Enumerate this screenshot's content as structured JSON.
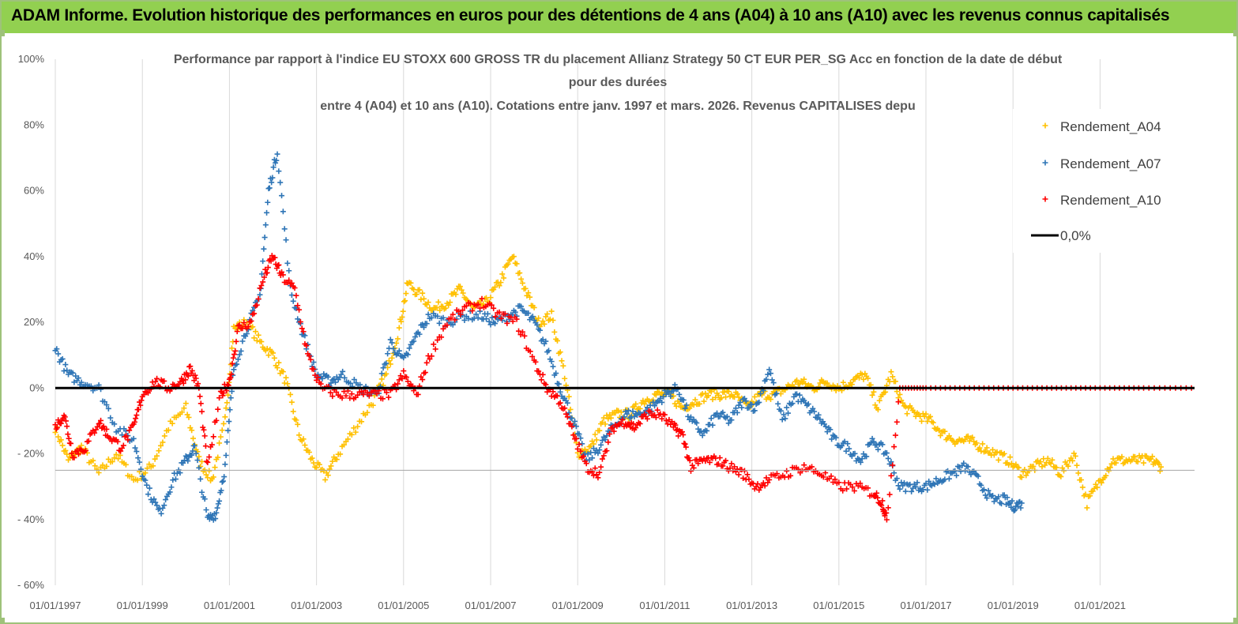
{
  "banner": {
    "title": "ADAM Informe. Evolution historique des performances en euros pour des détentions de 4 ans (A04) à 10 ans (A10) avec les revenus connus capitalisés",
    "color": "#92d050"
  },
  "chart_data": {
    "type": "scatter",
    "title_lines": [
      "Performance par rapport à l'indice EU STOXX 600 GROSS TR  du placement Allianz Strategy 50 CT EUR PER_SG Acc en fonction de la date de début",
      "pour des durées",
      "entre 4 (A04) et 10 ans (A10). Cotations entre janv. 1997 et mars. 2026. Revenus CAPITALISES depu"
    ],
    "ylim": [
      -60,
      100
    ],
    "y_ticks": [
      100,
      80,
      60,
      40,
      20,
      0,
      -20,
      -40,
      -60
    ],
    "y_tick_labels": [
      "100%",
      "80%",
      "60%",
      "40%",
      "20%",
      "0%",
      "- 20%",
      "- 40%",
      "- 60%"
    ],
    "xlim": [
      1997.0,
      2023.17
    ],
    "x_ticks": [
      1997,
      1999,
      2001,
      2003,
      2005,
      2007,
      2009,
      2011,
      2013,
      2015,
      2017,
      2019,
      2021
    ],
    "x_tick_labels": [
      "01/01/1997",
      "01/01/1999",
      "01/01/2001",
      "01/01/2003",
      "01/01/2005",
      "01/01/2007",
      "01/01/2009",
      "01/01/2011",
      "01/01/2013",
      "01/01/2015",
      "01/01/2017",
      "01/01/2019",
      "01/01/2021"
    ],
    "series": [
      {
        "name": "Rendement_A04",
        "color": "#ffc000",
        "x": [
          1997.0,
          1997.3,
          1997.6,
          1998.0,
          1998.4,
          1998.8,
          1999.2,
          1999.6,
          2000.0,
          2000.3,
          2000.6,
          2000.9,
          2001.1,
          2001.4,
          2001.7,
          2002.0,
          2002.3,
          2002.6,
          2002.9,
          2003.2,
          2003.5,
          2003.9,
          2004.3,
          2004.6,
          2004.9,
          2005.1,
          2005.4,
          2005.7,
          2006.0,
          2006.3,
          2006.6,
          2006.9,
          2007.2,
          2007.5,
          2007.8,
          2008.1,
          2008.4,
          2008.7,
          2009.0,
          2009.3,
          2009.6,
          2009.9,
          2010.2,
          2010.5,
          2010.8,
          2011.1,
          2011.4,
          2011.7,
          2012.0,
          2012.3,
          2012.6,
          2012.9,
          2013.2,
          2013.5,
          2013.8,
          2014.1,
          2014.4,
          2014.7,
          2015.0,
          2015.3,
          2015.6,
          2015.9,
          2016.2,
          2016.5,
          2016.8,
          2017.1,
          2017.4,
          2017.7,
          2018.0,
          2018.3,
          2018.6,
          2018.9,
          2019.2,
          2019.5,
          2019.8,
          2020.1,
          2020.4,
          2020.7,
          2021.0,
          2021.3,
          2021.6,
          2021.9,
          2022.2,
          2022.4
        ],
        "y": [
          -12,
          -22,
          -18,
          -26,
          -20,
          -28,
          -24,
          -12,
          -6,
          -22,
          -28,
          -10,
          18,
          20,
          14,
          10,
          2,
          -14,
          -22,
          -27,
          -20,
          -12,
          -4,
          4,
          18,
          32,
          28,
          24,
          26,
          30,
          24,
          26,
          32,
          40,
          30,
          20,
          22,
          4,
          -20,
          -18,
          -10,
          -8,
          -8,
          -4,
          -2,
          -2,
          -6,
          -4,
          -2,
          -2,
          -2,
          -6,
          -2,
          -2,
          0,
          2,
          0,
          2,
          0,
          2,
          4,
          -6,
          4,
          -6,
          -8,
          -10,
          -14,
          -16,
          -16,
          -18,
          -20,
          -22,
          -26,
          -24,
          -22,
          -26,
          -20,
          -35,
          -28,
          -22,
          -22,
          -22,
          -22,
          -24
        ]
      },
      {
        "name": "Rendement_A07",
        "color": "#2e75b6",
        "x": [
          1997.0,
          1997.3,
          1997.6,
          1998.0,
          1998.4,
          1998.8,
          1999.1,
          1999.4,
          1999.7,
          2000.0,
          2000.2,
          2000.5,
          2000.7,
          2000.9,
          2001.1,
          2001.4,
          2001.7,
          2001.9,
          2002.1,
          2002.4,
          2002.7,
          2003.0,
          2003.3,
          2003.6,
          2004.0,
          2004.4,
          2004.7,
          2005.0,
          2005.3,
          2005.6,
          2006.0,
          2006.4,
          2006.8,
          2007.1,
          2007.4,
          2007.7,
          2008.0,
          2008.3,
          2008.6,
          2008.9,
          2009.2,
          2009.5,
          2009.8,
          2010.1,
          2010.4,
          2010.7,
          2011.0,
          2011.3,
          2011.6,
          2011.9,
          2012.2,
          2012.5,
          2012.8,
          2013.1,
          2013.4,
          2013.7,
          2014.0,
          2014.3,
          2014.6,
          2014.9,
          2015.2,
          2015.5,
          2015.8,
          2016.1,
          2016.4,
          2016.7,
          2017.0,
          2017.3,
          2017.6,
          2017.9,
          2018.2,
          2018.5,
          2018.8,
          2019.0,
          2019.2
        ],
        "y": [
          12,
          4,
          2,
          0,
          -12,
          -16,
          -30,
          -38,
          -28,
          -22,
          -18,
          -40,
          -38,
          -24,
          6,
          18,
          28,
          60,
          72,
          30,
          16,
          4,
          2,
          4,
          0,
          -2,
          14,
          8,
          16,
          22,
          20,
          22,
          22,
          20,
          22,
          24,
          20,
          12,
          0,
          -10,
          -22,
          -18,
          -12,
          -8,
          -8,
          -6,
          -2,
          0,
          -10,
          -14,
          -8,
          -10,
          -4,
          -6,
          6,
          -10,
          -2,
          -6,
          -10,
          -16,
          -18,
          -22,
          -16,
          -20,
          -30,
          -30,
          -30,
          -28,
          -26,
          -24,
          -28,
          -34,
          -34,
          -36,
          -35
        ]
      },
      {
        "name": "Rendement_A10",
        "color": "#ff0000",
        "x": [
          1997.0,
          1997.2,
          1997.4,
          1997.7,
          1998.0,
          1998.2,
          1998.5,
          1998.8,
          1999.0,
          1999.3,
          1999.6,
          1999.9,
          2000.1,
          2000.3,
          2000.5,
          2000.8,
          2001.0,
          2001.2,
          2001.5,
          2001.8,
          2002.0,
          2002.2,
          2002.5,
          2002.8,
          2003.1,
          2003.5,
          2003.9,
          2004.3,
          2004.7,
          2005.0,
          2005.3,
          2005.6,
          2006.0,
          2006.4,
          2006.8,
          2007.2,
          2007.6,
          2008.0,
          2008.3,
          2008.6,
          2008.9,
          2009.2,
          2009.5,
          2009.8,
          2010.1,
          2010.3,
          2010.6,
          2010.9,
          2011.2,
          2011.4,
          2011.6,
          2011.9,
          2012.2,
          2012.5,
          2012.8,
          2013.1,
          2013.4,
          2013.8,
          2014.2,
          2014.6,
          2015.0,
          2015.4,
          2015.8,
          2016.0,
          2016.1,
          2016.4,
          2017.0,
          2018.0,
          2019.0,
          2020.0,
          2021.0,
          2022.0,
          2023.1
        ],
        "y": [
          -12,
          -8,
          -20,
          -18,
          -10,
          -14,
          -18,
          -12,
          -2,
          2,
          0,
          2,
          6,
          0,
          -24,
          -2,
          2,
          18,
          20,
          34,
          40,
          34,
          30,
          10,
          0,
          -2,
          -2,
          -2,
          -2,
          4,
          -2,
          10,
          20,
          24,
          26,
          22,
          20,
          8,
          0,
          -4,
          -14,
          -24,
          -26,
          -12,
          -10,
          -12,
          -8,
          -8,
          -12,
          -14,
          -24,
          -22,
          -22,
          -24,
          -26,
          -30,
          -28,
          -26,
          -24,
          -26,
          -30,
          -30,
          -32,
          -35,
          -40,
          0,
          0,
          0,
          0,
          0,
          0,
          0,
          0
        ]
      }
    ],
    "zero_line": {
      "name": "0,0%",
      "color": "#000000",
      "value": 0
    },
    "ref_line_value": -25,
    "legend": [
      "Rendement_A04",
      "Rendement_A07",
      "Rendement_A10",
      "0,0%"
    ],
    "legend_position": "top-right"
  }
}
